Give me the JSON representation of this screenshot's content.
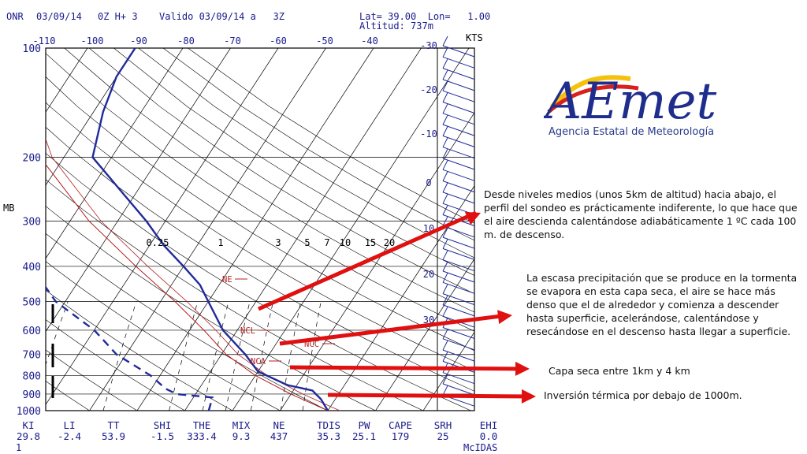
{
  "header": {
    "station": "ONR",
    "date_text": "03/09/14",
    "run_text": "0Z H+ 3",
    "valid_text": "Valido 03/09/14 a   3Z",
    "lat_text": "Lat= 39.00  Lon=   1.00",
    "alt_text": "Altitud: 737m"
  },
  "logo": {
    "text": "AEmet",
    "subtitle": "Agencia Estatal de Meteorología",
    "colors": {
      "blue": "#1f2d8c",
      "red": "#d8201c",
      "yellow": "#f4c20d"
    }
  },
  "chart_data": {
    "type": "line",
    "diagram": "skew-T log-P",
    "ylabel": "MB",
    "wind_label": "KTS",
    "footer_label": "McIDAS",
    "footer_num": "1",
    "p_range": [
      1000,
      100
    ],
    "p_ticks": [
      1000,
      900,
      800,
      700,
      600,
      500,
      400,
      300,
      200,
      100
    ],
    "t_ticks": [
      -110,
      -100,
      -90,
      -80,
      -70,
      -60,
      -50,
      -40
    ],
    "t_ticks_right": [
      30,
      20,
      10,
      0,
      -10,
      -20,
      -30
    ],
    "mixing_ratio_labels": [
      "0.25",
      "1",
      "3",
      "5",
      "7",
      "10",
      "15",
      "20"
    ],
    "indices": [
      {
        "label": "KI",
        "value": "29.8"
      },
      {
        "label": "LI",
        "value": "-2.4"
      },
      {
        "label": "TT",
        "value": "53.9"
      },
      {
        "label": "SHI",
        "value": "-1.5"
      },
      {
        "label": "THE",
        "value": "333.4"
      },
      {
        "label": "MIX",
        "value": "9.3"
      },
      {
        "label": "NE",
        "value": "437"
      },
      {
        "label": "TDIS",
        "value": "35.3"
      },
      {
        "label": "PW",
        "value": "25.1"
      },
      {
        "label": "CAPE",
        "value": "179"
      },
      {
        "label": "SRH",
        "value": "25"
      },
      {
        "label": "EHI",
        "value": "0.0"
      }
    ],
    "level_labels": [
      "NE",
      "NCL",
      "NCA",
      "NCC"
    ],
    "temperature": [
      {
        "p": 1000,
        "t": 30
      },
      {
        "p": 930,
        "t": 27
      },
      {
        "p": 880,
        "t": 24
      },
      {
        "p": 850,
        "t": 18
      },
      {
        "p": 780,
        "t": 10
      },
      {
        "p": 700,
        "t": 5
      },
      {
        "p": 600,
        "t": -3
      },
      {
        "p": 500,
        "t": -10
      },
      {
        "p": 450,
        "t": -14
      },
      {
        "p": 400,
        "t": -20
      },
      {
        "p": 350,
        "t": -27
      },
      {
        "p": 300,
        "t": -34
      },
      {
        "p": 250,
        "t": -43
      },
      {
        "p": 200,
        "t": -54
      },
      {
        "p": 150,
        "t": -58
      },
      {
        "p": 120,
        "t": -60
      },
      {
        "p": 100,
        "t": -60
      }
    ],
    "dewpoint": [
      {
        "p": 1000,
        "t": 5
      },
      {
        "p": 920,
        "t": 4
      },
      {
        "p": 900,
        "t": -4
      },
      {
        "p": 870,
        "t": -7
      },
      {
        "p": 800,
        "t": -12
      },
      {
        "p": 700,
        "t": -22
      },
      {
        "p": 600,
        "t": -30
      },
      {
        "p": 500,
        "t": -42
      },
      {
        "p": 400,
        "t": -52
      },
      {
        "p": 300,
        "t": -58
      },
      {
        "p": 200,
        "t": -70
      }
    ],
    "parcel": [
      {
        "p": 1000,
        "t": 30
      },
      {
        "p": 900,
        "t": 20
      },
      {
        "p": 800,
        "t": 10
      },
      {
        "p": 700,
        "t": 1
      },
      {
        "p": 600,
        "t": -7
      },
      {
        "p": 500,
        "t": -17
      },
      {
        "p": 400,
        "t": -30
      },
      {
        "p": 300,
        "t": -46
      },
      {
        "p": 200,
        "t": -65
      },
      {
        "p": 100,
        "t": -88
      }
    ]
  },
  "annotations": [
    {
      "id": "profile",
      "text": "Desde niveles medios (unos 5km de altitud) hacia abajo, el perfil del sondeo es prácticamente indiferente, lo que hace que el aire descienda calentándose adiabáticamente 1 ºC cada 100 m. de descenso."
    },
    {
      "id": "evaporation",
      "text": "La escasa precipitación que se produce en la tormenta se evapora en esta capa seca, el aire se hace más denso que el de alrededor y comienza a descender hasta superficie, acelerándose, calentándose y resecándose en el descenso hasta llegar a superficie."
    },
    {
      "id": "dry-layer",
      "text": "Capa seca entre 1km y 4 km"
    },
    {
      "id": "inversion",
      "text": "Inversión térmica por debajo de 1000m."
    }
  ]
}
